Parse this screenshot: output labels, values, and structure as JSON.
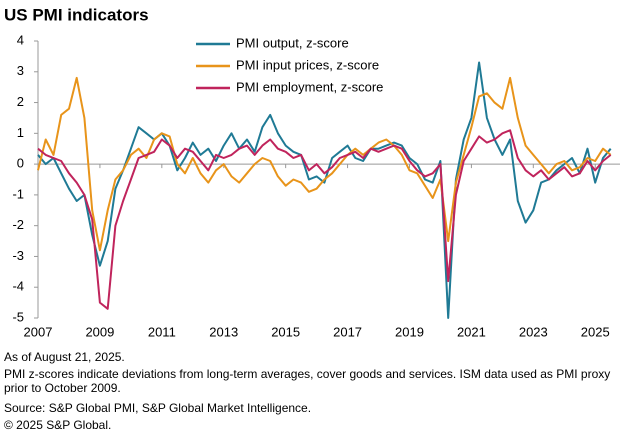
{
  "chart_data": {
    "type": "line",
    "title": "US PMI indicators",
    "x": [
      2007.0,
      2007.25,
      2007.5,
      2007.75,
      2008.0,
      2008.25,
      2008.5,
      2008.75,
      2009.0,
      2009.25,
      2009.5,
      2009.75,
      2010.0,
      2010.25,
      2010.5,
      2010.75,
      2011.0,
      2011.25,
      2011.5,
      2011.75,
      2012.0,
      2012.25,
      2012.5,
      2012.75,
      2013.0,
      2013.25,
      2013.5,
      2013.75,
      2014.0,
      2014.25,
      2014.5,
      2014.75,
      2015.0,
      2015.25,
      2015.5,
      2015.75,
      2016.0,
      2016.25,
      2016.5,
      2016.75,
      2017.0,
      2017.25,
      2017.5,
      2017.75,
      2018.0,
      2018.25,
      2018.5,
      2018.75,
      2019.0,
      2019.25,
      2019.5,
      2019.75,
      2020.0,
      2020.25,
      2020.5,
      2020.75,
      2021.0,
      2021.25,
      2021.5,
      2021.75,
      2022.0,
      2022.25,
      2022.5,
      2022.75,
      2023.0,
      2023.25,
      2023.5,
      2023.75,
      2024.0,
      2024.25,
      2024.5,
      2024.75,
      2025.0,
      2025.25,
      2025.5
    ],
    "series": [
      {
        "name": "PMI output, z-score",
        "color": "#1f7a95",
        "values": [
          0.3,
          0,
          0.2,
          -0.3,
          -0.8,
          -1.2,
          -1.0,
          -2.3,
          -3.3,
          -2.5,
          -0.8,
          -0.2,
          0.5,
          1.2,
          1.0,
          0.8,
          1.0,
          0.6,
          -0.2,
          0.2,
          0.7,
          0.3,
          0.5,
          0.1,
          0.6,
          1.0,
          0.5,
          0.8,
          0.4,
          1.2,
          1.6,
          1.0,
          0.6,
          0.4,
          0.3,
          -0.5,
          -0.4,
          -0.6,
          0.2,
          0.4,
          0.6,
          0.2,
          0.1,
          0.5,
          0.5,
          0.6,
          0.7,
          0.6,
          0.2,
          0,
          -0.5,
          -0.6,
          0.1,
          -5.0,
          -0.5,
          0.8,
          1.5,
          3.3,
          1.5,
          0.8,
          0.3,
          0.8,
          -1.2,
          -1.9,
          -1.5,
          -0.6,
          -0.5,
          -0.2,
          0,
          0.2,
          -0.3,
          0.5,
          -0.6,
          0.2,
          0.5
        ]
      },
      {
        "name": "PMI input prices, z-score",
        "color": "#e8941a",
        "values": [
          -0.2,
          0.8,
          0.3,
          1.6,
          1.8,
          2.8,
          1.5,
          -1.5,
          -2.8,
          -1.5,
          -0.5,
          -0.2,
          0.3,
          0.5,
          0.2,
          0.8,
          1.0,
          0.9,
          0,
          -0.3,
          0.2,
          -0.3,
          -0.6,
          -0.2,
          0,
          -0.4,
          -0.6,
          -0.3,
          0,
          0.2,
          0.1,
          -0.4,
          -0.7,
          -0.5,
          -0.6,
          -0.9,
          -0.8,
          -0.5,
          -0.3,
          0,
          0.3,
          0.5,
          0.3,
          0.5,
          0.7,
          0.8,
          0.6,
          0.3,
          -0.2,
          -0.3,
          -0.7,
          -1.1,
          -0.5,
          -2.5,
          -0.6,
          0.3,
          1.2,
          2.2,
          2.3,
          2.0,
          1.8,
          2.8,
          1.5,
          0.6,
          0.3,
          0,
          -0.3,
          0,
          0.1,
          -0.2,
          -0.1,
          0.2,
          0.1,
          0.5,
          0.3
        ]
      },
      {
        "name": "PMI employment, z-score",
        "color": "#c0245c",
        "values": [
          0.5,
          0.3,
          0.2,
          0.1,
          -0.3,
          -0.6,
          -1.0,
          -1.8,
          -4.5,
          -4.7,
          -2.0,
          -1.2,
          -0.5,
          0.2,
          0.3,
          0.4,
          0.8,
          0.6,
          0.2,
          0.5,
          0.4,
          0.1,
          -0.2,
          0.3,
          0.2,
          0.3,
          0.5,
          0.6,
          0.3,
          0.6,
          0.8,
          0.5,
          0.4,
          0.2,
          0.3,
          -0.2,
          0,
          -0.3,
          -0.1,
          0.2,
          0.3,
          0.4,
          0.2,
          0.5,
          0.4,
          0.5,
          0.6,
          0.5,
          0.1,
          -0.2,
          -0.4,
          -0.3,
          0,
          -3.8,
          -1.0,
          0.1,
          0.5,
          0.9,
          0.7,
          0.8,
          1.0,
          1.1,
          0.2,
          -0.2,
          -0.4,
          -0.2,
          -0.5,
          -0.3,
          -0.1,
          -0.4,
          -0.3,
          0.1,
          -0.2,
          0.1,
          0.3
        ]
      }
    ],
    "xlim": [
      2007,
      2025.8
    ],
    "xticks": [
      2007,
      2009,
      2011,
      2013,
      2015,
      2017,
      2019,
      2021,
      2023,
      2025
    ],
    "ylim": [
      -5,
      4
    ],
    "yticks": [
      4,
      3,
      2,
      1,
      0,
      -1,
      -2,
      -3,
      -4,
      -5
    ],
    "notes": [
      "As of August 21, 2025.",
      "PMI z-scores indicate deviations from long-term averages, cover goods and services. ISM data used as PMI proxy",
      "prior to October 2009.",
      "Source: S&P Global PMI, S&P Global Market Intelligence.",
      "© 2025 S&P Global."
    ]
  }
}
